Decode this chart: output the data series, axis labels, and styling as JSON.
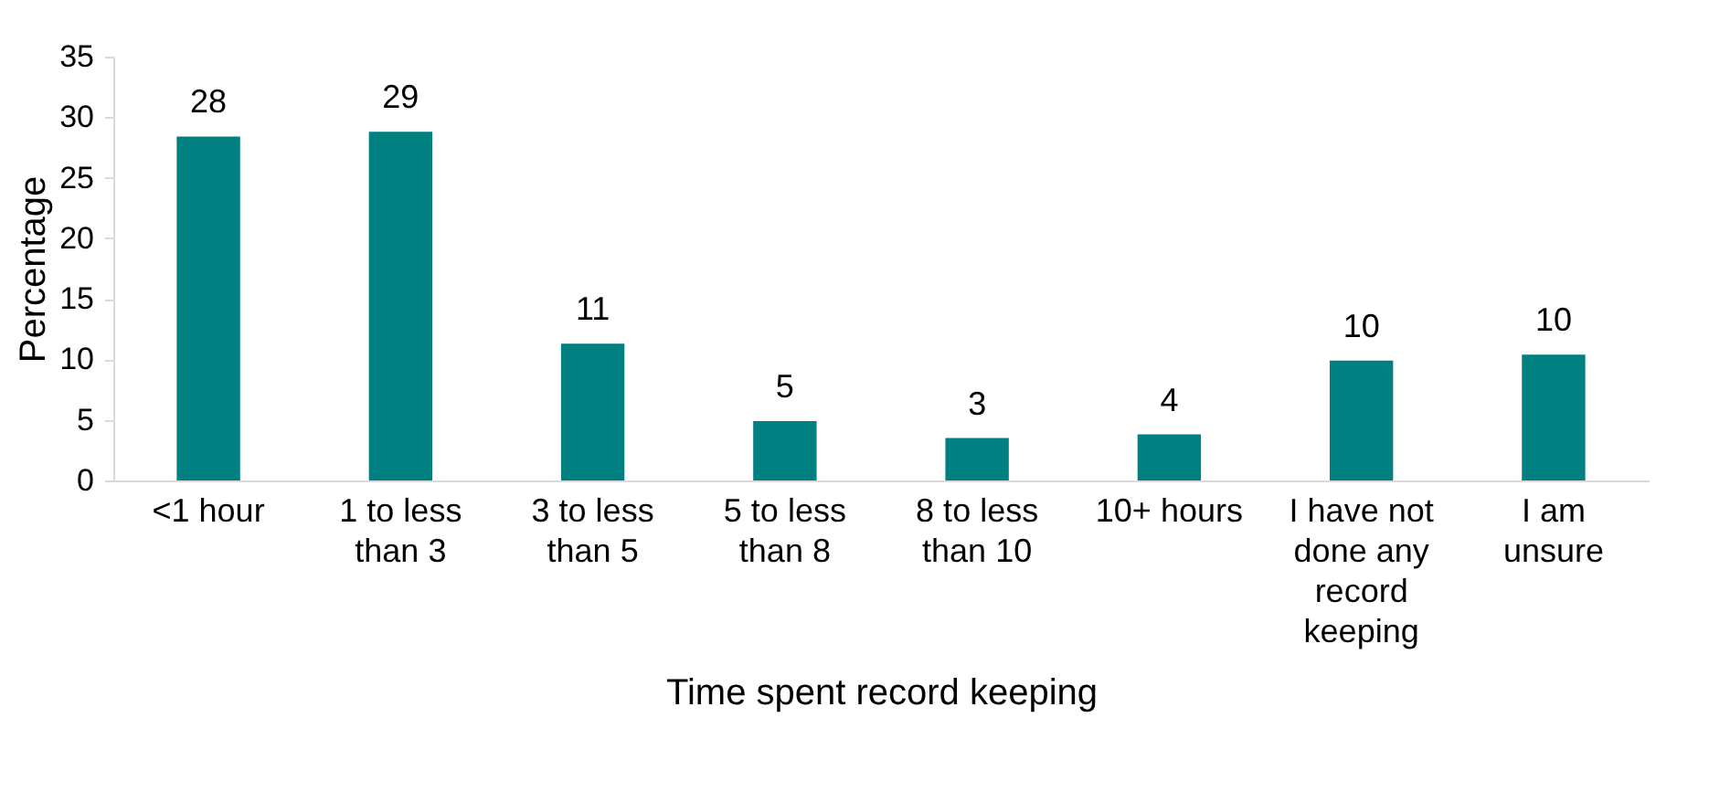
{
  "chart_data": {
    "type": "bar",
    "xlabel": "Time spent record keeping",
    "ylabel": "Percentage",
    "categories": [
      "<1 hour",
      "1 to less than 3",
      "3 to less than 5",
      "5 to less than 8",
      "8 to less than 10",
      "10+ hours",
      "I have not done any record keeping",
      "I am unsure"
    ],
    "values": [
      28.4,
      28.8,
      11.3,
      4.9,
      3.5,
      3.8,
      9.9,
      10.4
    ],
    "value_labels": [
      "28",
      "29",
      "11",
      "5",
      "3",
      "4",
      "10",
      "10"
    ],
    "color": "#008080",
    "ylim": [
      0,
      35
    ],
    "yticks": [
      0,
      5,
      10,
      15,
      20,
      25,
      30,
      35
    ],
    "grid": false
  }
}
